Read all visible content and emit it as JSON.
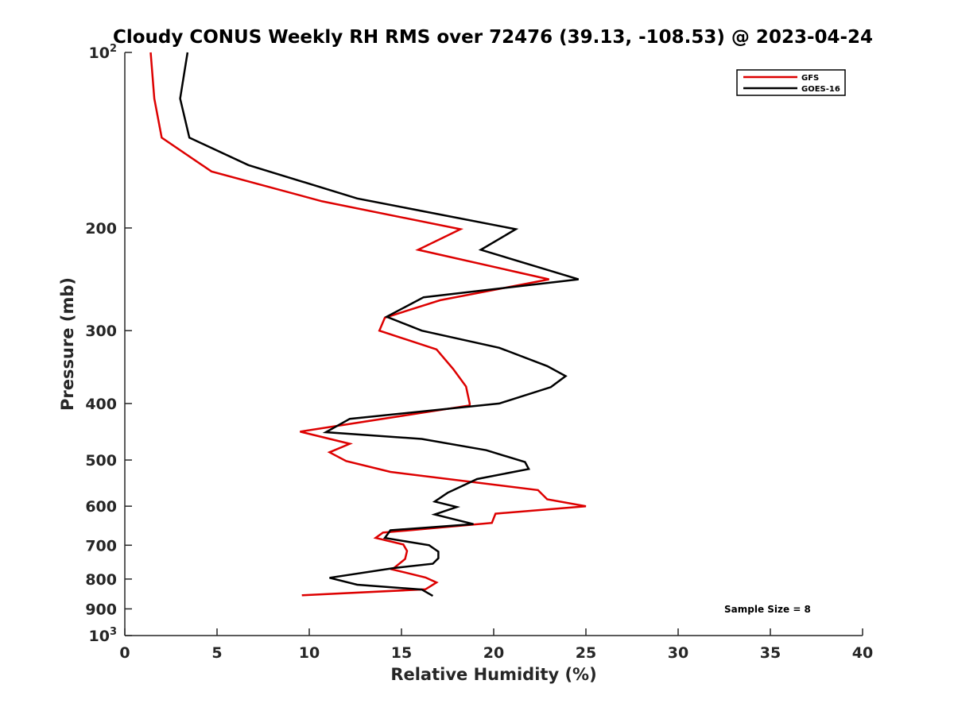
{
  "chart_data": {
    "type": "line",
    "title": "Cloudy CONUS Weekly RH RMS over 72476 (39.13, -108.53) @ 2023-04-24",
    "xlabel": "Relative Humidity (%)",
    "ylabel": "Pressure (mb)",
    "xlim": [
      0,
      40
    ],
    "ylim": [
      100,
      1000
    ],
    "y_scale": "log",
    "y_reversed": true,
    "grid": false,
    "legend_position": "top-right",
    "annotation": "Sample Size = 8",
    "x_ticks": [
      {
        "value": 0,
        "label": "0"
      },
      {
        "value": 5,
        "label": "5"
      },
      {
        "value": 10,
        "label": "10"
      },
      {
        "value": 15,
        "label": "15"
      },
      {
        "value": 20,
        "label": "20"
      },
      {
        "value": 25,
        "label": "25"
      },
      {
        "value": 30,
        "label": "30"
      },
      {
        "value": 35,
        "label": "35"
      },
      {
        "value": 40,
        "label": "40"
      }
    ],
    "y_ticks": [
      {
        "value": 100,
        "label": "10",
        "sup": "2"
      },
      {
        "value": 200,
        "label": "200",
        "sup": ""
      },
      {
        "value": 300,
        "label": "300",
        "sup": ""
      },
      {
        "value": 400,
        "label": "400",
        "sup": ""
      },
      {
        "value": 500,
        "label": "500",
        "sup": ""
      },
      {
        "value": 600,
        "label": "600",
        "sup": ""
      },
      {
        "value": 700,
        "label": "700",
        "sup": ""
      },
      {
        "value": 800,
        "label": "800",
        "sup": ""
      },
      {
        "value": 900,
        "label": "900",
        "sup": ""
      },
      {
        "value": 1000,
        "label": "10",
        "sup": "3"
      }
    ],
    "series": [
      {
        "name": "GFS",
        "color": "#dd0000",
        "points": [
          {
            "x": 1.4,
            "y": 100
          },
          {
            "x": 1.6,
            "y": 120
          },
          {
            "x": 2.0,
            "y": 140
          },
          {
            "x": 4.7,
            "y": 160
          },
          {
            "x": 10.7,
            "y": 180
          },
          {
            "x": 18.2,
            "y": 201
          },
          {
            "x": 15.9,
            "y": 218
          },
          {
            "x": 23.0,
            "y": 245
          },
          {
            "x": 17.1,
            "y": 266
          },
          {
            "x": 14.1,
            "y": 285
          },
          {
            "x": 13.8,
            "y": 300
          },
          {
            "x": 16.9,
            "y": 323
          },
          {
            "x": 17.8,
            "y": 349
          },
          {
            "x": 18.5,
            "y": 374
          },
          {
            "x": 18.7,
            "y": 400
          },
          {
            "x": 18.7,
            "y": 403
          },
          {
            "x": 9.5,
            "y": 447
          },
          {
            "x": 12.2,
            "y": 469
          },
          {
            "x": 11.1,
            "y": 485
          },
          {
            "x": 12.0,
            "y": 502
          },
          {
            "x": 14.4,
            "y": 524
          },
          {
            "x": 22.4,
            "y": 563
          },
          {
            "x": 22.9,
            "y": 584
          },
          {
            "x": 25.0,
            "y": 600
          },
          {
            "x": 20.1,
            "y": 618
          },
          {
            "x": 19.9,
            "y": 641
          },
          {
            "x": 14.0,
            "y": 666
          },
          {
            "x": 13.6,
            "y": 680
          },
          {
            "x": 15.1,
            "y": 698
          },
          {
            "x": 15.3,
            "y": 716
          },
          {
            "x": 15.2,
            "y": 739
          },
          {
            "x": 14.5,
            "y": 770
          },
          {
            "x": 16.3,
            "y": 795
          },
          {
            "x": 16.9,
            "y": 811
          },
          {
            "x": 16.3,
            "y": 833
          },
          {
            "x": 9.6,
            "y": 853
          }
        ]
      },
      {
        "name": "GOES-16",
        "color": "#000000",
        "points": [
          {
            "x": 3.4,
            "y": 100
          },
          {
            "x": 3.0,
            "y": 120
          },
          {
            "x": 3.5,
            "y": 140
          },
          {
            "x": 6.7,
            "y": 156
          },
          {
            "x": 12.6,
            "y": 178
          },
          {
            "x": 21.2,
            "y": 201
          },
          {
            "x": 19.3,
            "y": 218
          },
          {
            "x": 24.6,
            "y": 245
          },
          {
            "x": 16.2,
            "y": 263
          },
          {
            "x": 14.2,
            "y": 284
          },
          {
            "x": 16.1,
            "y": 300
          },
          {
            "x": 20.3,
            "y": 321
          },
          {
            "x": 22.9,
            "y": 345
          },
          {
            "x": 23.9,
            "y": 359
          },
          {
            "x": 23.1,
            "y": 375
          },
          {
            "x": 20.3,
            "y": 400
          },
          {
            "x": 12.2,
            "y": 425
          },
          {
            "x": 10.9,
            "y": 448
          },
          {
            "x": 16.1,
            "y": 460
          },
          {
            "x": 19.6,
            "y": 481
          },
          {
            "x": 21.7,
            "y": 504
          },
          {
            "x": 21.9,
            "y": 518
          },
          {
            "x": 19.1,
            "y": 539
          },
          {
            "x": 17.5,
            "y": 569
          },
          {
            "x": 16.8,
            "y": 589
          },
          {
            "x": 18.0,
            "y": 602
          },
          {
            "x": 16.8,
            "y": 620
          },
          {
            "x": 18.9,
            "y": 644
          },
          {
            "x": 14.4,
            "y": 660
          },
          {
            "x": 14.1,
            "y": 680
          },
          {
            "x": 16.5,
            "y": 700
          },
          {
            "x": 17.0,
            "y": 718
          },
          {
            "x": 17.0,
            "y": 737
          },
          {
            "x": 16.7,
            "y": 753
          },
          {
            "x": 14.6,
            "y": 766
          },
          {
            "x": 11.1,
            "y": 796
          },
          {
            "x": 12.6,
            "y": 818
          },
          {
            "x": 16.1,
            "y": 834
          },
          {
            "x": 16.7,
            "y": 855
          }
        ]
      }
    ]
  }
}
